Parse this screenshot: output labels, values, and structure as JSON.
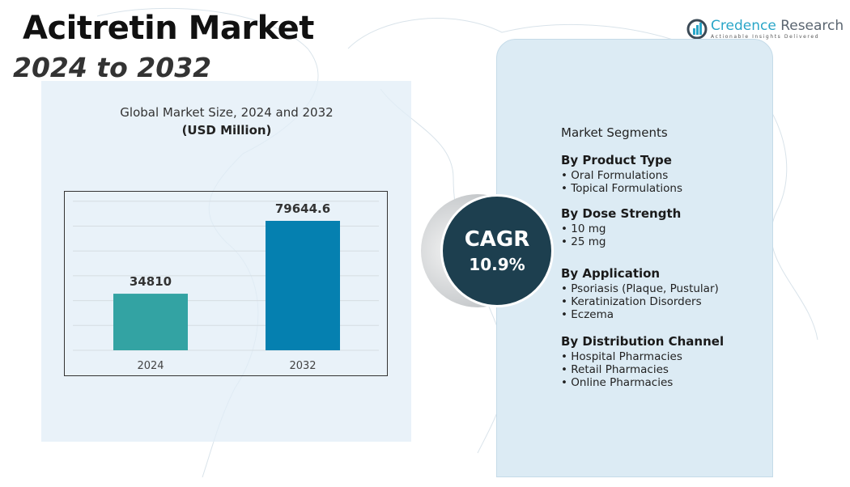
{
  "header": {
    "title": "Acitretin Market",
    "subtitle": "2024 to 2032"
  },
  "logo": {
    "name_a": "Credence",
    "name_b": "Research",
    "tagline": "Actionable Insights Delivered"
  },
  "chart_data": {
    "type": "bar",
    "title": "Global Market Size, 2024 and 2032",
    "unit": "(USD Million)",
    "categories": [
      "2024",
      "2032"
    ],
    "values": [
      34810,
      79644.6
    ],
    "value_labels": [
      "34810",
      "79644.6"
    ],
    "colors": [
      "#33a3a3",
      "#0580b0"
    ],
    "grid": true
  },
  "cagr": {
    "label": "CAGR",
    "value": "10.9%"
  },
  "segments": {
    "title": "Market Segments",
    "groups": [
      {
        "heading": "By Product Type",
        "items": [
          "Oral Formulations",
          "Topical Formulations"
        ]
      },
      {
        "heading": "By Dose Strength",
        "items": [
          "10 mg",
          "25 mg"
        ]
      },
      {
        "heading": "By Application",
        "items": [
          "Psoriasis (Plaque, Pustular)",
          "Keratinization Disorders",
          "Eczema"
        ]
      },
      {
        "heading": "By Distribution Channel",
        "items": [
          "Hospital Pharmacies",
          "Retail Pharmacies",
          "Online Pharmacies"
        ]
      }
    ]
  }
}
